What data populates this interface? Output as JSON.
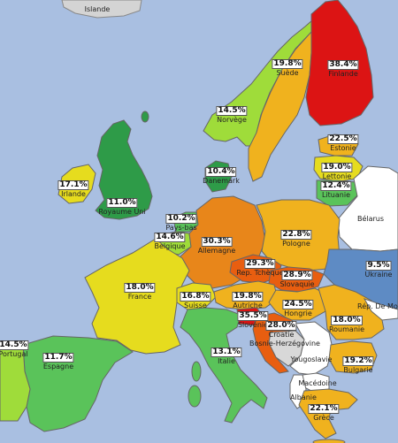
{
  "colors": {
    "sea": "#a9bfe1",
    "no_data": "#c4c4c4",
    "white_country": "#ffffff",
    "scale": [
      "#2e9b48",
      "#5ac35a",
      "#9fdc3a",
      "#e6dc1e",
      "#f0b21e",
      "#e8861a",
      "#e85e10",
      "#dc1414"
    ]
  },
  "countries": [
    {
      "id": "islande",
      "name": "Islande",
      "value": null
    },
    {
      "id": "finlande",
      "name": "Finlande",
      "value": "38.4%"
    },
    {
      "id": "suede",
      "name": "Suède",
      "value": "19.8%"
    },
    {
      "id": "norvege",
      "name": "Norvège",
      "value": "14.5%"
    },
    {
      "id": "estonie",
      "name": "Estonie",
      "value": "22.5%"
    },
    {
      "id": "lettonie",
      "name": "Lettonie",
      "value": "19.0%"
    },
    {
      "id": "lituanie",
      "name": "Lituanie",
      "value": "12.4%"
    },
    {
      "id": "danemark",
      "name": "Danemark",
      "value": "10.4%"
    },
    {
      "id": "irlande",
      "name": "Irlande",
      "value": "17.1%"
    },
    {
      "id": "royaume-uni",
      "name": "Royaume Uni",
      "value": "11.0%"
    },
    {
      "id": "pays-bas",
      "name": "Pays-bas",
      "value": "10.2%"
    },
    {
      "id": "belgique",
      "name": "Belgique",
      "value": "14.6%"
    },
    {
      "id": "allemagne",
      "name": "Allemagne",
      "value": "30.3%"
    },
    {
      "id": "pologne",
      "name": "Pologne",
      "value": "22.8%"
    },
    {
      "id": "belarus",
      "name": "Bélarus",
      "value": null
    },
    {
      "id": "ukraine",
      "name": "Ukraine",
      "value": "9.5%"
    },
    {
      "id": "rep-tcheque",
      "name": "Rep. Tchèque",
      "value": "29.3%"
    },
    {
      "id": "slovaquie",
      "name": "Slovaquie",
      "value": "28.9%"
    },
    {
      "id": "france",
      "name": "France",
      "value": "18.0%"
    },
    {
      "id": "suisse",
      "name": "Suisse",
      "value": "16.8%"
    },
    {
      "id": "autriche",
      "name": "Autriche",
      "value": "19.8%"
    },
    {
      "id": "hongrie",
      "name": "Hongrie",
      "value": "24.5%"
    },
    {
      "id": "slovenie",
      "name": "Slovénie",
      "value": "35.5%"
    },
    {
      "id": "croatie",
      "name": "Croatie",
      "value": "28.0%"
    },
    {
      "id": "rep-moldavie",
      "name": "Rép. De Mol",
      "value": null
    },
    {
      "id": "roumanie",
      "name": "Roumanie",
      "value": "18.0%"
    },
    {
      "id": "bosnie",
      "name": "Bosnie-Herzégovine",
      "value": null
    },
    {
      "id": "yougoslavie",
      "name": "Yougoslavie",
      "value": null
    },
    {
      "id": "bulgarie",
      "name": "Bulgarie",
      "value": "19.2%"
    },
    {
      "id": "macedoine",
      "name": "Macédoine",
      "value": null
    },
    {
      "id": "albanie",
      "name": "Albanie",
      "value": null
    },
    {
      "id": "grece",
      "name": "Grèce",
      "value": "22.1%"
    },
    {
      "id": "italie",
      "name": "Italie",
      "value": "13.1%"
    },
    {
      "id": "espagne",
      "name": "Espagne",
      "value": "11.7%"
    },
    {
      "id": "portugal",
      "name": "Portugal",
      "value": "14.5%"
    }
  ]
}
